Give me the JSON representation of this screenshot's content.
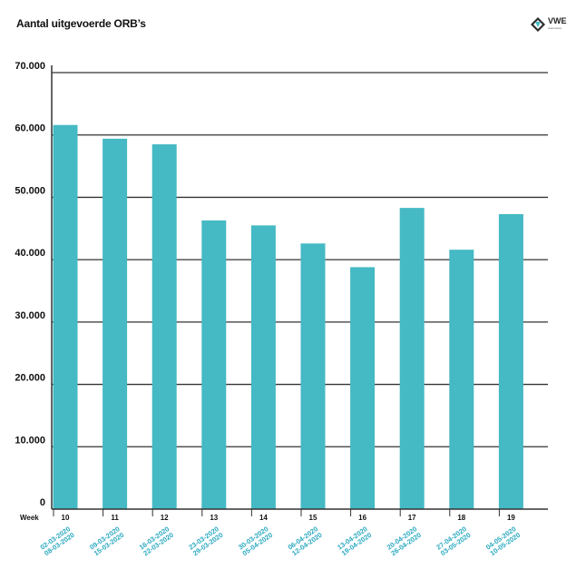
{
  "header": {
    "title": "Aantal uitgevoerde ORB’s",
    "logo_name": "VWE",
    "logo_sub": "Automotive"
  },
  "colors": {
    "bar": "#45b9c4",
    "grid": "#333333",
    "date_label": "#2aa9c0",
    "text": "#111111"
  },
  "chart_data": {
    "type": "bar",
    "title": "Aantal uitgevoerde ORB’s",
    "xlabel": "Week",
    "ylabel": "",
    "ylim": [
      0,
      70000
    ],
    "yticks": [
      {
        "value": 0,
        "label": "0"
      },
      {
        "value": 10000,
        "label": "10.000"
      },
      {
        "value": 20000,
        "label": "20.000"
      },
      {
        "value": 30000,
        "label": "30.000"
      },
      {
        "value": 40000,
        "label": "40.000"
      },
      {
        "value": 50000,
        "label": "50.000"
      },
      {
        "value": 60000,
        "label": "60.000"
      },
      {
        "value": 70000,
        "label": "70.000"
      }
    ],
    "grid": true,
    "categories": [
      "10",
      "11",
      "12",
      "13",
      "14",
      "15",
      "16",
      "17",
      "18",
      "19"
    ],
    "date_ranges": [
      [
        "02-03-2020",
        "08-03-2020"
      ],
      [
        "09-03-2020",
        "15-03-2020"
      ],
      [
        "16-03-2020",
        "22-03-2020"
      ],
      [
        "23-03-2020",
        "29-03-2020"
      ],
      [
        "30-03-2020",
        "05-04-2020"
      ],
      [
        "06-04-2020",
        "12-04-2020"
      ],
      [
        "13-04-2020",
        "19-04-2020"
      ],
      [
        "20-04-2020",
        "26-04-2020"
      ],
      [
        "27-04-2020",
        "03-05-2020"
      ],
      [
        "04-05-2020",
        "10-05-2020"
      ]
    ],
    "values": [
      61600,
      59400,
      58500,
      46300,
      45500,
      42600,
      38800,
      48300,
      41600,
      47300
    ]
  }
}
